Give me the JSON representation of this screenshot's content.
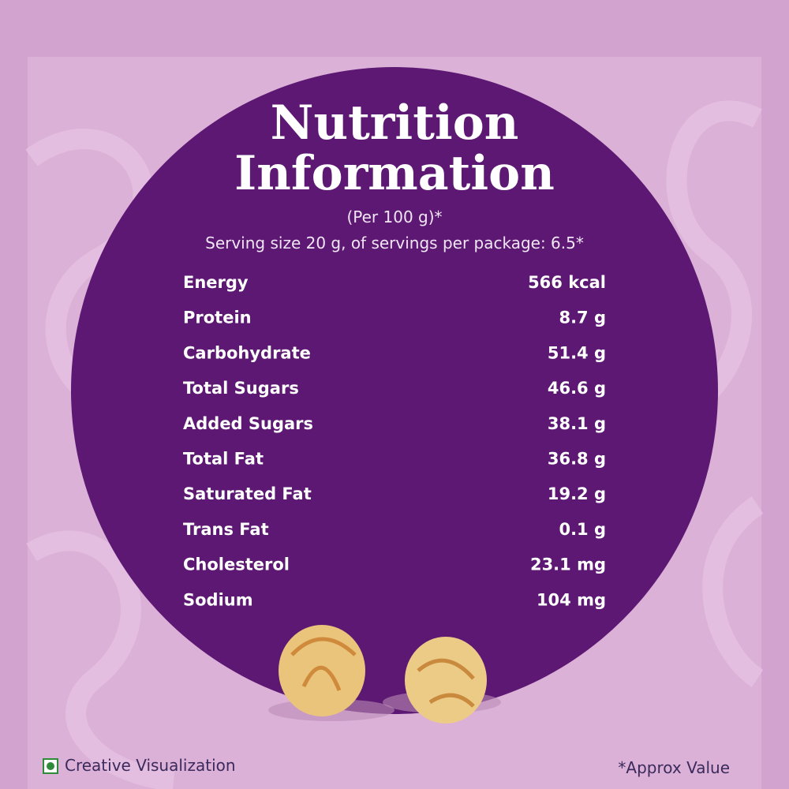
{
  "header": {
    "title_lines": [
      "Nutrition",
      "Information"
    ],
    "subtitle": "(Per 100 g)*",
    "serving": "Serving size 20 g, of servings per package: 6.5*"
  },
  "table": {
    "rows": [
      [
        "Energy",
        "566 kcal"
      ],
      [
        "Protein",
        "8.7 g"
      ],
      [
        "Carbohydrate",
        "51.4 g"
      ],
      [
        "Total Sugars",
        "46.6 g"
      ],
      [
        "Added Sugars",
        "38.1 g"
      ],
      [
        "Total Fat",
        "36.8 g"
      ],
      [
        "Saturated Fat",
        "19.2 g"
      ],
      [
        "Trans Fat",
        "0.1 g"
      ],
      [
        "Cholesterol",
        "23.1 mg"
      ],
      [
        "Sodium",
        "104 mg"
      ]
    ]
  },
  "footer": {
    "left": "Creative Visualization",
    "right": "*Approx Value"
  }
}
